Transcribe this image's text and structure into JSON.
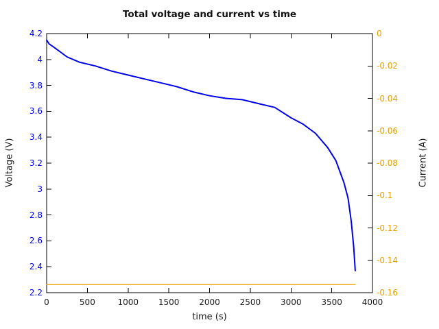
{
  "title": "Total voltage and current vs time",
  "x_axis": {
    "label": "time (s)",
    "ticks": [
      "0",
      "500",
      "1000",
      "1500",
      "2000",
      "2500",
      "3000",
      "3500",
      "4000"
    ],
    "min": 0,
    "max": 4000
  },
  "left_axis": {
    "label": "Voltage (V)",
    "color": "#0000e8",
    "ticks": [
      "4.2",
      "4",
      "3.8",
      "3.6",
      "3.4",
      "3.2",
      "3",
      "2.8",
      "2.6",
      "2.4",
      "2.2"
    ],
    "min": 2.2,
    "max": 4.2
  },
  "right_axis": {
    "label": "Current (A)",
    "color": "#e8a000",
    "ticks": [
      "0",
      "-0.02",
      "-0.04",
      "-0.06",
      "-0.08",
      "-0.1",
      "-0.12",
      "-0.14",
      "-0.16"
    ],
    "min": -0.16,
    "max": 0
  },
  "chart_data": {
    "type": "line",
    "title": "Total voltage and current vs time",
    "xlabel": "time (s)",
    "ylabel_left": "Voltage (V)",
    "ylabel_right": "Current (A)",
    "xlim": [
      0,
      4000
    ],
    "ylim_left": [
      2.2,
      4.2
    ],
    "ylim_right": [
      -0.16,
      0
    ],
    "grid": false,
    "legend": "none",
    "frame_color": "#000000",
    "series": [
      {
        "name": "Total voltage",
        "axis": "left",
        "color": "#0000e8",
        "width": 2,
        "x": [
          0,
          30,
          100,
          250,
          400,
          600,
          800,
          1000,
          1200,
          1400,
          1600,
          1800,
          2000,
          2200,
          2400,
          2600,
          2800,
          3000,
          3150,
          3300,
          3450,
          3550,
          3650,
          3700,
          3740,
          3770,
          3789
        ],
        "y": [
          4.15,
          4.12,
          4.09,
          4.02,
          3.98,
          3.95,
          3.91,
          3.88,
          3.85,
          3.82,
          3.79,
          3.75,
          3.72,
          3.7,
          3.69,
          3.66,
          3.63,
          3.55,
          3.5,
          3.43,
          3.32,
          3.22,
          3.05,
          2.93,
          2.75,
          2.55,
          2.37
        ]
      },
      {
        "name": "Current",
        "axis": "right",
        "color": "#e8a000",
        "width": 1.4,
        "x": [
          0,
          3789
        ],
        "y": [
          -0.155,
          -0.155
        ]
      }
    ]
  }
}
